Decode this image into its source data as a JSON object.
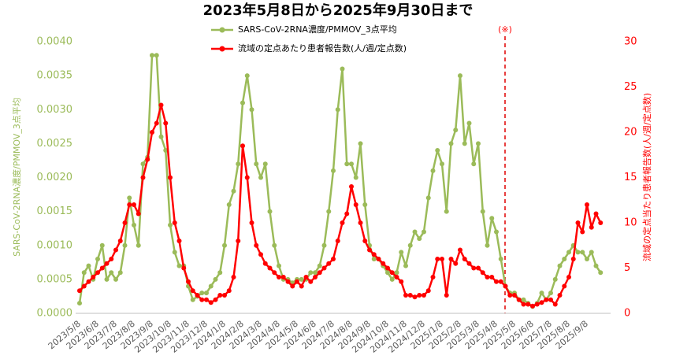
{
  "chart_data": {
    "type": "line",
    "title": "2023年5月8日から2025年9月30日まで",
    "y_label": "SARS-CoV-2RNA濃度/PMMOV_3点平均",
    "y2_label": "流域の定点当たり患者報告数(人/週/定点数)",
    "annotation": "(※)",
    "categories": [
      "2023/5/8",
      null,
      null,
      null,
      "2023/6/8",
      null,
      null,
      null,
      "2023/7/8",
      null,
      null,
      null,
      "2023/8/8",
      null,
      null,
      null,
      "2023/9/8",
      null,
      null,
      null,
      "2023/10/8",
      null,
      null,
      null,
      "2023/11/8",
      null,
      null,
      null,
      "2023/12/8",
      null,
      null,
      null,
      "2024/1/8",
      null,
      null,
      null,
      "2024/2/8",
      null,
      null,
      null,
      "2024/3/8",
      null,
      null,
      null,
      "2024/4/8",
      null,
      null,
      null,
      "2024/5/8",
      null,
      null,
      null,
      "2024/6/8",
      null,
      null,
      null,
      "2024/7/8",
      null,
      null,
      null,
      "2024/8/8",
      null,
      null,
      null,
      "2024/9/8",
      null,
      null,
      null,
      "2024/10/8",
      null,
      null,
      null,
      "2024/11/8",
      null,
      null,
      null,
      "2024/12/8",
      null,
      null,
      null,
      "2025/1/8",
      null,
      null,
      null,
      "2025/2/8",
      null,
      null,
      null,
      "2025/3/8",
      null,
      null,
      null,
      "2025/4/8",
      null,
      null,
      null,
      "2025/5/8",
      null,
      null,
      null,
      "2025/6/8",
      null,
      null,
      null,
      "2025/7/8",
      null,
      null,
      null,
      "2025/8/8",
      null,
      null,
      null,
      "2025/9/8",
      null,
      null,
      null
    ],
    "series": [
      {
        "name": "SARS-CoV-2RNA濃度/PMMOV_3点平均",
        "color": "#9bbb59",
        "axis": "y",
        "values": [
          0.00015,
          0.0006,
          0.0007,
          0.0005,
          0.0008,
          0.001,
          0.0005,
          0.0006,
          0.0005,
          0.0006,
          0.001,
          0.0017,
          0.0013,
          0.001,
          0.0022,
          0.0023,
          0.0038,
          0.0038,
          0.0026,
          0.0024,
          0.0013,
          0.0009,
          0.0007,
          0.0007,
          0.0004,
          0.0002,
          0.00025,
          0.0003,
          0.0003,
          0.0004,
          0.0005,
          0.0006,
          0.001,
          0.0016,
          0.0018,
          0.0022,
          0.0031,
          0.0035,
          0.003,
          0.0022,
          0.002,
          0.0022,
          0.0015,
          0.001,
          0.0007,
          0.0005,
          0.0005,
          0.00045,
          0.0005,
          0.0005,
          0.0005,
          0.0006,
          0.0006,
          0.0007,
          0.001,
          0.0015,
          0.0021,
          0.003,
          0.0036,
          0.0022,
          0.0022,
          0.002,
          0.0025,
          0.0016,
          0.001,
          0.0008,
          0.0008,
          0.0007,
          0.0006,
          0.0005,
          0.0006,
          0.0009,
          0.0007,
          0.001,
          0.0012,
          0.0011,
          0.0012,
          0.0017,
          0.0021,
          0.0024,
          0.0022,
          0.0015,
          0.0025,
          0.0027,
          0.0035,
          0.0025,
          0.0028,
          0.0022,
          0.0025,
          0.0015,
          0.001,
          0.0014,
          0.0012,
          0.0008,
          0.0004,
          0.0003,
          0.0003,
          0.0002,
          0.0002,
          0.00015,
          0.0001,
          0.00015,
          0.0003,
          0.0002,
          0.0003,
          0.0005,
          0.0007,
          0.0008,
          0.0009,
          0.001,
          0.0009,
          0.0009,
          0.0008,
          0.0009,
          0.0007,
          0.0006
        ]
      },
      {
        "name": "流域の定点あたり患者報告数(人/週/定点数)",
        "color": "#ff0000",
        "axis": "y2",
        "values": [
          2.5,
          3,
          3.5,
          4,
          4.5,
          5,
          5.5,
          6,
          7,
          8,
          10,
          12,
          12,
          11,
          15,
          17,
          20,
          21,
          23,
          21,
          15,
          10,
          8,
          5,
          3.5,
          2.5,
          2,
          1.5,
          1.5,
          1.2,
          1.5,
          2,
          2,
          2.5,
          4,
          8,
          18.5,
          15,
          10,
          7.5,
          6.5,
          5.5,
          5,
          4.5,
          4,
          4,
          3.5,
          3,
          3.5,
          3,
          4,
          3.5,
          4,
          4.5,
          5,
          5.5,
          6,
          8,
          10,
          11,
          14,
          12,
          10,
          8,
          7,
          6.5,
          6,
          5.5,
          5,
          4.5,
          4,
          3.5,
          2,
          2,
          1.8,
          2,
          2,
          2.5,
          4,
          6,
          6,
          2,
          6,
          5.5,
          7,
          6,
          5.5,
          5,
          5,
          4.5,
          4,
          4,
          3.5,
          3.5,
          3,
          2,
          2,
          1.5,
          1,
          1,
          0.8,
          1,
          1.2,
          1.5,
          1.5,
          1,
          2,
          3,
          4,
          6,
          10,
          9,
          12,
          9.5,
          11,
          10
        ]
      }
    ],
    "ylim": [
      0,
      0.004
    ],
    "yticks": [
      {
        "value": 0,
        "label": "0.0000"
      },
      {
        "value": 0.0005,
        "label": "0.0005"
      },
      {
        "value": 0.001,
        "label": "0.0010"
      },
      {
        "value": 0.0015,
        "label": "0.0015"
      },
      {
        "value": 0.002,
        "label": "0.0020"
      },
      {
        "value": 0.0025,
        "label": "0.0025"
      },
      {
        "value": 0.003,
        "label": "0.0030"
      },
      {
        "value": 0.0035,
        "label": "0.0035"
      },
      {
        "value": 0.004,
        "label": "0.0040"
      }
    ],
    "y2lim": [
      0,
      30
    ],
    "y2ticks": [
      0,
      5,
      10,
      15,
      20,
      25,
      30
    ],
    "grid": false
  }
}
